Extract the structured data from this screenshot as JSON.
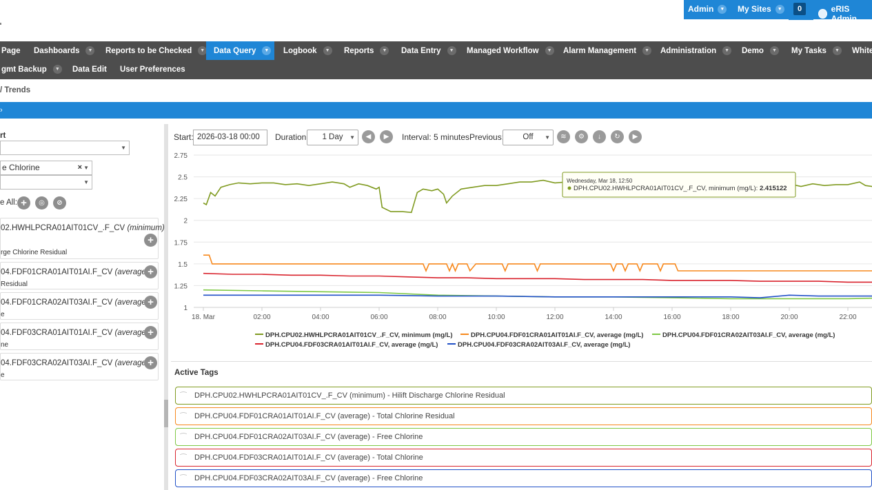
{
  "topbar": {
    "admin_label": "Admin",
    "mysites_label": "My Sites",
    "notifications_count": "0",
    "user_label": "eRIS Admin"
  },
  "nav": {
    "row1": [
      {
        "label": "Page",
        "caret": false
      },
      {
        "label": "Dashboards",
        "caret": true
      },
      {
        "label": "Reports to be Checked",
        "caret": true
      },
      {
        "label": "Data Query",
        "caret": true,
        "active": true
      },
      {
        "label": "Logbook",
        "caret": true
      },
      {
        "label": "Reports",
        "caret": true
      },
      {
        "label": "Data Entry",
        "caret": true
      },
      {
        "label": "Managed Workflow",
        "caret": true
      },
      {
        "label": "Alarm Management",
        "caret": true
      },
      {
        "label": "Administration",
        "caret": true
      },
      {
        "label": "Demo",
        "caret": true
      },
      {
        "label": "My Tasks",
        "caret": true
      },
      {
        "label": "White",
        "caret": false
      }
    ],
    "row2": [
      {
        "label": "gmt Backup",
        "caret": true
      },
      {
        "label": "Data Edit",
        "caret": false
      },
      {
        "label": "User Preferences",
        "caret": false
      }
    ]
  },
  "breadcrumb": "/ Trends",
  "bluebar_text": "›",
  "left": {
    "section_label": "rt",
    "select1_value": "",
    "select2_value": "e Chlorine",
    "select3_value": "",
    "all_label": "e All:",
    "tags": [
      {
        "name": "02.HWHLPCRA01AIT01CV_.F_CV",
        "agg": "(minimum)",
        "sub": "rge Chlorine Residual"
      },
      {
        "name": "04.FDF01CRA01AIT01AI.F_CV",
        "agg": "(average)",
        "sub": "Residual"
      },
      {
        "name": "04.FDF01CRA02AIT03AI.F_CV",
        "agg": "(average)",
        "sub": "e"
      },
      {
        "name": "04.FDF03CRA01AIT01AI.F_CV",
        "agg": "(average)",
        "sub": "ne"
      },
      {
        "name": "04.FDF03CRA02AIT03AI.F_CV",
        "agg": "(average)",
        "sub": "e"
      }
    ]
  },
  "toolbar": {
    "start_label": "Start:",
    "start_value": "2026-03-18 00:00",
    "duration_label": "Duration:",
    "duration_value": "1 Day",
    "interval_text": "Interval: 5 minutes",
    "previous_label": "Previous:",
    "previous_value": "Off"
  },
  "colors": {
    "olive": "#7f9a1f",
    "orange": "#f7881c",
    "green": "#7ec844",
    "red": "#d9232d",
    "blue": "#1f4fc7",
    "accent": "#1f86d6",
    "nav_bg": "#4d4d4d"
  },
  "tooltip": {
    "date": "Wednesday, Mar 18, 12:50",
    "series": "DPH.CPU02.HWHLPCRA01AIT01CV_.F_CV, minimum (mg/L):",
    "value": "2.415122"
  },
  "chart_data": {
    "type": "line",
    "y_ticks": [
      "2.75",
      "2.5",
      "2.25",
      "2",
      "1.75",
      "1.5",
      "1.25",
      "1"
    ],
    "ylim": [
      1,
      2.75
    ],
    "x_ticks": [
      "18. Mar",
      "02:00",
      "04:00",
      "06:00",
      "08:00",
      "10:00",
      "12:00",
      "14:00",
      "16:00",
      "18:00",
      "20:00",
      "22:00"
    ],
    "xlim_hours": [
      0,
      23.5
    ],
    "series": [
      {
        "name": "DPH.CPU02.HWHLPCRA01AIT01CV_.F_CV, minimum (mg/L)",
        "color": "#7f9a1f",
        "points": [
          [
            0,
            2.2
          ],
          [
            0.1,
            2.18
          ],
          [
            0.25,
            2.32
          ],
          [
            0.4,
            2.28
          ],
          [
            0.6,
            2.38
          ],
          [
            0.9,
            2.41
          ],
          [
            1.2,
            2.43
          ],
          [
            1.6,
            2.42
          ],
          [
            2.0,
            2.43
          ],
          [
            2.4,
            2.43
          ],
          [
            2.8,
            2.41
          ],
          [
            3.2,
            2.42
          ],
          [
            3.6,
            2.4
          ],
          [
            4.0,
            2.42
          ],
          [
            4.4,
            2.44
          ],
          [
            4.8,
            2.42
          ],
          [
            5.0,
            2.38
          ],
          [
            5.3,
            2.42
          ],
          [
            5.6,
            2.4
          ],
          [
            5.9,
            2.36
          ],
          [
            6.0,
            2.38
          ],
          [
            6.1,
            2.15
          ],
          [
            6.4,
            2.1
          ],
          [
            6.8,
            2.1
          ],
          [
            7.1,
            2.09
          ],
          [
            7.3,
            2.32
          ],
          [
            7.5,
            2.36
          ],
          [
            7.8,
            2.34
          ],
          [
            8.0,
            2.36
          ],
          [
            8.2,
            2.3
          ],
          [
            8.3,
            2.2
          ],
          [
            8.5,
            2.28
          ],
          [
            8.8,
            2.36
          ],
          [
            9.2,
            2.38
          ],
          [
            9.6,
            2.4
          ],
          [
            10.0,
            2.4
          ],
          [
            10.4,
            2.42
          ],
          [
            10.8,
            2.44
          ],
          [
            11.2,
            2.44
          ],
          [
            11.6,
            2.46
          ],
          [
            12.0,
            2.43
          ],
          [
            12.4,
            2.44
          ],
          [
            12.83,
            2.415
          ],
          [
            13.2,
            2.43
          ],
          [
            13.6,
            2.42
          ],
          [
            14.0,
            2.42
          ],
          [
            14.4,
            2.44
          ],
          [
            14.8,
            2.42
          ],
          [
            15.2,
            2.42
          ],
          [
            15.6,
            2.43
          ],
          [
            16.0,
            2.42
          ],
          [
            16.4,
            2.43
          ],
          [
            16.8,
            2.41
          ],
          [
            17.2,
            2.42
          ],
          [
            17.6,
            2.43
          ],
          [
            18.0,
            2.42
          ],
          [
            18.4,
            2.41
          ],
          [
            18.8,
            2.42
          ],
          [
            19.2,
            2.4
          ],
          [
            19.6,
            2.42
          ],
          [
            20.0,
            2.42
          ],
          [
            20.4,
            2.39
          ],
          [
            20.8,
            2.42
          ],
          [
            21.2,
            2.4
          ],
          [
            21.6,
            2.41
          ],
          [
            22.0,
            2.41
          ],
          [
            22.4,
            2.44
          ],
          [
            22.6,
            2.4
          ],
          [
            23.0,
            2.38
          ],
          [
            23.4,
            2.35
          ]
        ]
      },
      {
        "name": "DPH.CPU04.FDF01CRA01AIT01AI.F_CV, average (mg/L)",
        "color": "#f7881c",
        "points": [
          [
            0,
            1.6
          ],
          [
            0.2,
            1.6
          ],
          [
            0.3,
            1.5
          ],
          [
            7.5,
            1.5
          ],
          [
            7.6,
            1.42
          ],
          [
            7.7,
            1.5
          ],
          [
            8.3,
            1.5
          ],
          [
            8.4,
            1.42
          ],
          [
            8.5,
            1.5
          ],
          [
            8.6,
            1.42
          ],
          [
            8.7,
            1.5
          ],
          [
            9.0,
            1.5
          ],
          [
            9.1,
            1.42
          ],
          [
            9.3,
            1.5
          ],
          [
            10.2,
            1.5
          ],
          [
            10.3,
            1.42
          ],
          [
            10.4,
            1.5
          ],
          [
            11.3,
            1.5
          ],
          [
            11.4,
            1.42
          ],
          [
            11.5,
            1.5
          ],
          [
            13.9,
            1.5
          ],
          [
            14.0,
            1.42
          ],
          [
            14.1,
            1.5
          ],
          [
            14.3,
            1.5
          ],
          [
            14.4,
            1.42
          ],
          [
            14.5,
            1.5
          ],
          [
            14.8,
            1.5
          ],
          [
            14.9,
            1.42
          ],
          [
            15.0,
            1.5
          ],
          [
            15.5,
            1.5
          ],
          [
            15.6,
            1.42
          ],
          [
            15.7,
            1.5
          ],
          [
            16.1,
            1.5
          ],
          [
            16.2,
            1.42
          ],
          [
            23.5,
            1.42
          ]
        ]
      },
      {
        "name": "DPH.CPU04.FDF01CRA02AIT03AI.F_CV, average (mg/L)",
        "color": "#7ec844",
        "points": [
          [
            0,
            1.2
          ],
          [
            2,
            1.19
          ],
          [
            4,
            1.18
          ],
          [
            6,
            1.17
          ],
          [
            8,
            1.14
          ],
          [
            10,
            1.13
          ],
          [
            12,
            1.12
          ],
          [
            14,
            1.12
          ],
          [
            16,
            1.11
          ],
          [
            18,
            1.1
          ],
          [
            20,
            1.1
          ],
          [
            22,
            1.1
          ],
          [
            23.5,
            1.11
          ]
        ]
      },
      {
        "name": "DPH.CPU04.FDF03CRA01AIT01AI.F_CV, average (mg/L)",
        "color": "#d9232d",
        "points": [
          [
            0,
            1.39
          ],
          [
            1,
            1.38
          ],
          [
            2,
            1.38
          ],
          [
            3,
            1.37
          ],
          [
            4,
            1.37
          ],
          [
            5,
            1.36
          ],
          [
            6,
            1.36
          ],
          [
            7,
            1.35
          ],
          [
            8,
            1.34
          ],
          [
            9,
            1.34
          ],
          [
            10,
            1.33
          ],
          [
            11,
            1.33
          ],
          [
            12,
            1.33
          ],
          [
            13,
            1.32
          ],
          [
            14,
            1.32
          ],
          [
            15,
            1.32
          ],
          [
            16,
            1.31
          ],
          [
            17,
            1.31
          ],
          [
            18,
            1.31
          ],
          [
            19,
            1.3
          ],
          [
            20,
            1.3
          ],
          [
            21,
            1.3
          ],
          [
            22,
            1.29
          ],
          [
            23.5,
            1.29
          ]
        ]
      },
      {
        "name": "DPH.CPU04.FDF03CRA02AIT03AI.F_CV, average (mg/L)",
        "color": "#1f4fc7",
        "points": [
          [
            0,
            1.14
          ],
          [
            2,
            1.14
          ],
          [
            4,
            1.14
          ],
          [
            6,
            1.14
          ],
          [
            8,
            1.13
          ],
          [
            10,
            1.13
          ],
          [
            12,
            1.12
          ],
          [
            14,
            1.12
          ],
          [
            16,
            1.12
          ],
          [
            18,
            1.12
          ],
          [
            19,
            1.11
          ],
          [
            20,
            1.14
          ],
          [
            21,
            1.13
          ],
          [
            22,
            1.13
          ],
          [
            23.5,
            1.13
          ]
        ]
      }
    ]
  },
  "active_tags": {
    "title": "Active Tags",
    "items": [
      {
        "text": "DPH.CPU02.HWHLPCRA01AIT01CV_.F_CV (minimum) - Hilift Discharge Chlorine Residual",
        "color": "#7f9a1f"
      },
      {
        "text": "DPH.CPU04.FDF01CRA01AIT01AI.F_CV (average) - Total Chlorine Residual",
        "color": "#f7881c"
      },
      {
        "text": "DPH.CPU04.FDF01CRA02AIT03AI.F_CV (average) - Free Chlorine",
        "color": "#7ec844"
      },
      {
        "text": "DPH.CPU04.FDF03CRA01AIT01AI.F_CV (average) - Total Chlorine",
        "color": "#d9232d"
      },
      {
        "text": "DPH.CPU04.FDF03CRA02AIT03AI.F_CV (average) - Free Chlorine",
        "color": "#1f4fc7"
      }
    ]
  },
  "icons": {
    "toolbar": [
      "prev-icon",
      "next-icon",
      "layers-icon",
      "settings-icon",
      "download-icon",
      "refresh-icon",
      "play-icon"
    ],
    "left_actions": [
      "add-all-icon",
      "target-icon",
      "clear-icon"
    ]
  }
}
